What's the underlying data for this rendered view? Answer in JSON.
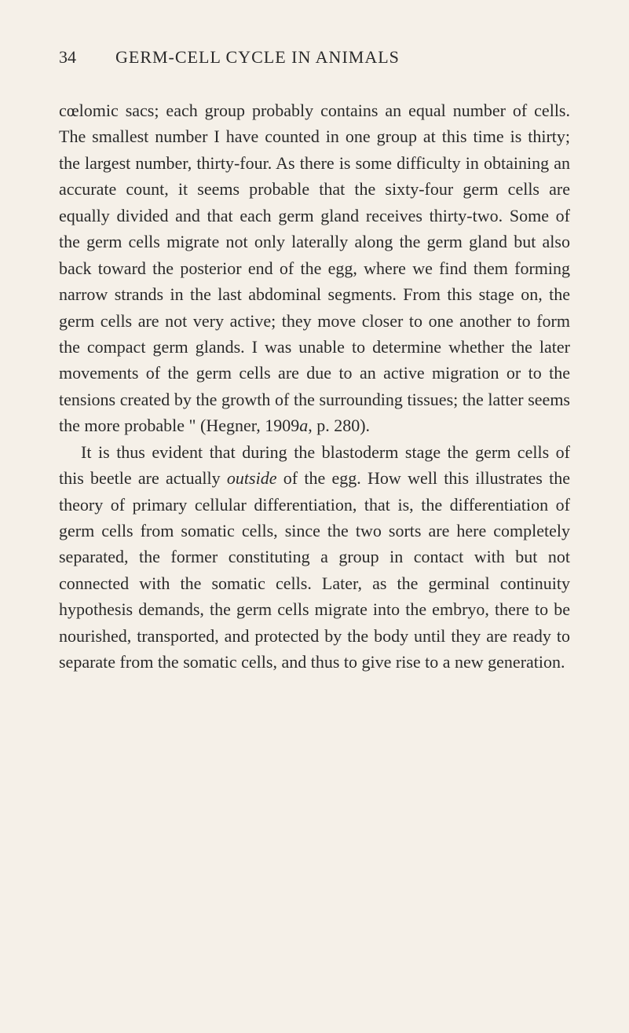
{
  "header": {
    "page_number": "34",
    "title": "GERM-CELL CYCLE IN ANIMALS"
  },
  "paragraphs": [
    {
      "indent": false,
      "segments": [
        {
          "text": "cœlomic sacs; each group probably contains an equal number of cells. The smallest number I have counted in one group at this time is thirty; the largest number, thirty-four. As there is some difficulty in obtaining an accurate count, it seems probable that the sixty-four germ cells are equally divided and that each germ gland receives thirty-two. Some of the germ cells migrate not only laterally along the germ gland but also back toward the posterior end of the egg, where we find them forming narrow strands in the last abdominal segments. From this stage on, the germ cells are not very active; they move closer to one another to form the compact germ glands. I was unable to determine whether the later movements of the germ cells are due to an active migration or to the tensions created by the growth of the surrounding tissues; the latter seems the more probable \" (Hegner, 1909",
          "italic": false
        },
        {
          "text": "a",
          "italic": true
        },
        {
          "text": ", p. 280).",
          "italic": false
        }
      ]
    },
    {
      "indent": true,
      "segments": [
        {
          "text": "It is thus evident that during the blastoderm stage the germ cells of this beetle are actually ",
          "italic": false
        },
        {
          "text": "outside",
          "italic": true
        },
        {
          "text": " of the egg. How well this illustrates the theory of primary cellular differentiation, that is, the differentiation of germ cells from somatic cells, since the two sorts are here completely separated, the former constituting a group in contact with but not connected with the somatic cells. Later, as the germinal continuity hypothesis demands, the germ cells migrate into the embryo, there to be nourished, transported, and protected by the body until they are ready to separate from the somatic cells, and thus to give rise to a new generation.",
          "italic": false
        }
      ]
    }
  ]
}
